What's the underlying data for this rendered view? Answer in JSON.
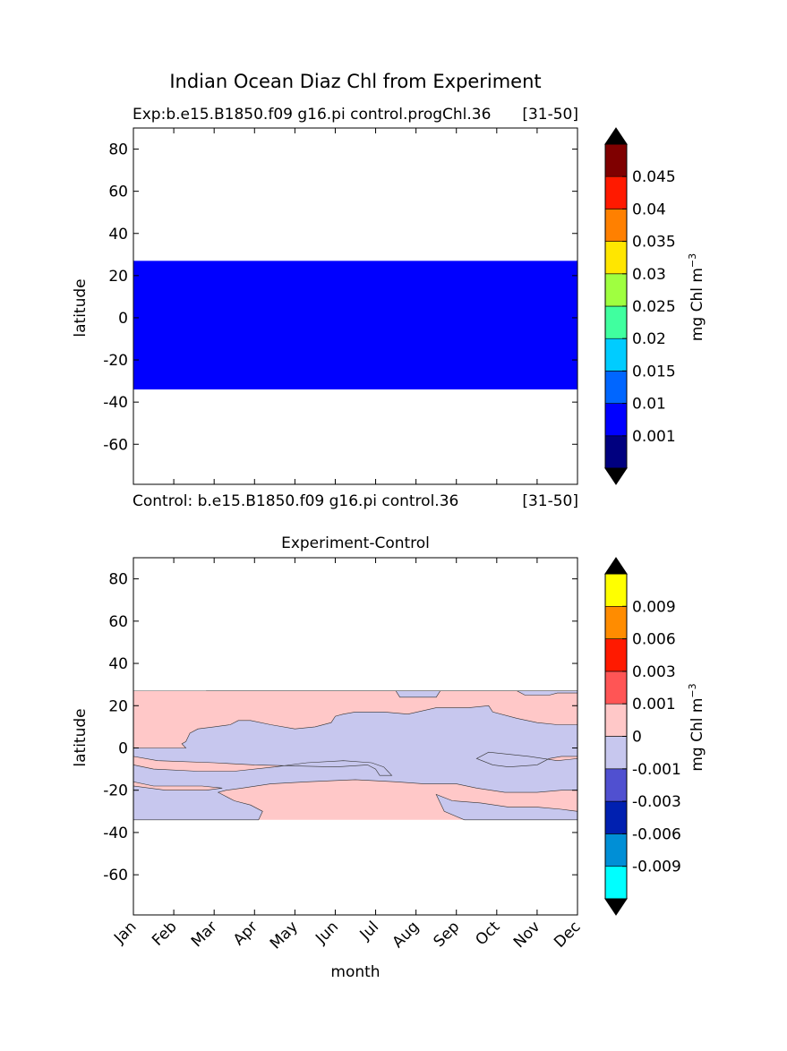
{
  "figure": {
    "title": "Indian Ocean Diaz Chl from Experiment"
  },
  "chart_data": [
    {
      "type": "heatmap",
      "panel": "top",
      "title_left": "Exp:b.e15.B1850.f09 g16.pi control.progChl.36",
      "title_right": "[31-50]",
      "below_left": "Control: b.e15.B1850.f09 g16.pi control.36",
      "below_right": "[31-50]",
      "ylabel": "latitude",
      "xlim": [
        0,
        11
      ],
      "ylim": [
        -79,
        90
      ],
      "yticks": [
        80,
        60,
        40,
        20,
        0,
        -20,
        -40,
        -60
      ],
      "data_extent_lat": [
        -34,
        27
      ],
      "regions": [
        {
          "lat_range": [
            -34,
            27
          ],
          "level": "0.001-0.01",
          "color": "#0000ff"
        }
      ],
      "colorbar": {
        "label": "mg Chl m",
        "label_sup": "−3",
        "extend": "both",
        "extend_low_color": "#000000",
        "extend_high_color": "#000000",
        "colors": [
          "#00007f",
          "#0000ff",
          "#0066ff",
          "#00ccff",
          "#40ff9f",
          "#9fff40",
          "#ffe600",
          "#ff8000",
          "#ff1a00",
          "#7f0000"
        ],
        "ticks": [
          "0.001",
          "0.01",
          "0.015",
          "0.02",
          "0.025",
          "0.03",
          "0.035",
          "0.04",
          "0.045"
        ]
      }
    },
    {
      "type": "heatmap",
      "panel": "bottom",
      "title": "Experiment-Control",
      "xlabel": "month",
      "ylabel": "latitude",
      "xticks": [
        "Jan",
        "Feb",
        "Mar",
        "Apr",
        "May",
        "Jun",
        "Jul",
        "Aug",
        "Sep",
        "Oct",
        "Nov",
        "Dec"
      ],
      "xlim": [
        0,
        11
      ],
      "ylim": [
        -79,
        90
      ],
      "yticks": [
        80,
        60,
        40,
        20,
        0,
        -20,
        -40,
        -60
      ],
      "data_extent_lat": [
        -34,
        27
      ],
      "background_level": {
        "range": "0-0.001",
        "color": "#ffc8c8"
      },
      "negative_regions": [
        {
          "level": "-0.001-0",
          "color": "#c7c7ee",
          "points": [
            [
              1.8,
              27
            ],
            [
              3.4,
              27
            ],
            [
              4.5,
              27
            ],
            [
              5.5,
              27
            ],
            [
              6.5,
              27
            ],
            [
              6.6,
              24
            ],
            [
              7.0,
              24
            ],
            [
              7.5,
              24
            ],
            [
              7.6,
              27
            ],
            [
              9.5,
              27
            ],
            [
              9.7,
              25
            ],
            [
              10.3,
              25
            ],
            [
              10.5,
              26
            ],
            [
              11,
              26
            ],
            [
              11,
              11
            ],
            [
              10.5,
              11
            ],
            [
              10.0,
              12
            ],
            [
              9.5,
              14
            ],
            [
              8.9,
              17
            ],
            [
              8.8,
              20
            ],
            [
              8.3,
              19
            ],
            [
              7.5,
              19
            ],
            [
              6.8,
              16
            ],
            [
              6.2,
              17
            ],
            [
              5.5,
              17
            ],
            [
              5.2,
              16
            ],
            [
              5.0,
              15
            ],
            [
              4.9,
              12
            ],
            [
              4.5,
              10
            ],
            [
              4.0,
              9
            ],
            [
              3.4,
              11
            ],
            [
              2.9,
              13
            ],
            [
              2.6,
              13
            ],
            [
              2.4,
              11
            ],
            [
              2.0,
              10
            ],
            [
              1.6,
              9
            ],
            [
              1.4,
              7
            ],
            [
              1.3,
              3
            ],
            [
              1.2,
              2
            ],
            [
              1.3,
              0
            ],
            [
              0,
              0
            ],
            [
              0,
              -4
            ],
            [
              0.6,
              -6
            ],
            [
              2.0,
              -7
            ],
            [
              3.0,
              -8
            ],
            [
              4.0,
              -8.5
            ],
            [
              5.0,
              -9
            ],
            [
              5.8,
              -8
            ],
            [
              6.0,
              -10
            ],
            [
              6.1,
              -13
            ],
            [
              6.4,
              -13
            ],
            [
              6.3,
              -11
            ],
            [
              6.2,
              -9
            ],
            [
              5.9,
              -7
            ],
            [
              5.2,
              -6
            ],
            [
              4.3,
              -7
            ],
            [
              3.5,
              -9
            ],
            [
              2.5,
              -11
            ],
            [
              1.6,
              -11
            ],
            [
              0.5,
              -10
            ],
            [
              0,
              -8
            ],
            [
              0,
              -16
            ],
            [
              0.5,
              -18
            ],
            [
              1.7,
              -18
            ],
            [
              2.2,
              -19
            ],
            [
              1.8,
              -20
            ],
            [
              0.8,
              -20
            ],
            [
              0,
              -18
            ],
            [
              0,
              -34
            ],
            [
              3.1,
              -34
            ],
            [
              3.2,
              -30
            ],
            [
              2.9,
              -27
            ],
            [
              2.5,
              -25
            ],
            [
              2.1,
              -21
            ],
            [
              2.3,
              -20
            ],
            [
              2.7,
              -19
            ],
            [
              3.4,
              -17
            ],
            [
              4.3,
              -16
            ],
            [
              5.5,
              -15
            ],
            [
              6.5,
              -16
            ],
            [
              7.2,
              -17
            ],
            [
              8.0,
              -17
            ],
            [
              8.5,
              -19
            ],
            [
              9.2,
              -21
            ],
            [
              10.0,
              -21
            ],
            [
              10.6,
              -20
            ],
            [
              11,
              -20
            ],
            [
              11,
              -5
            ],
            [
              10.5,
              -6
            ],
            [
              9.8,
              -4
            ],
            [
              9.3,
              -3
            ],
            [
              8.8,
              -2
            ],
            [
              8.5,
              -5
            ],
            [
              8.9,
              -8
            ],
            [
              9.3,
              -9
            ],
            [
              10.0,
              -8
            ],
            [
              10.3,
              -5
            ],
            [
              10.6,
              -4
            ],
            [
              11,
              -4
            ],
            [
              11,
              27
            ]
          ]
        },
        {
          "level": "-0.001-0",
          "color": "#c7c7ee",
          "points": [
            [
              7.5,
              -22
            ],
            [
              7.9,
              -25
            ],
            [
              8.6,
              -26
            ],
            [
              9.3,
              -28
            ],
            [
              10.0,
              -28
            ],
            [
              10.6,
              -29
            ],
            [
              11,
              -30
            ],
            [
              11,
              -34
            ],
            [
              10.0,
              -34
            ],
            [
              9.0,
              -34
            ],
            [
              8.2,
              -34
            ],
            [
              7.7,
              -30
            ],
            [
              7.6,
              -26
            ],
            [
              7.5,
              -22
            ]
          ]
        }
      ],
      "colorbar": {
        "label": "mg Chl m",
        "label_sup": "−3",
        "extend": "both",
        "extend_low_color": "#000000",
        "extend_high_color": "#000000",
        "colors": [
          "#00ffff",
          "#008fd6",
          "#0020b0",
          "#5050d0",
          "#c7c7ee",
          "#ffc8c8",
          "#ff5555",
          "#ff1a00",
          "#ff8c00",
          "#ffff00"
        ],
        "ticks": [
          "-0.009",
          "-0.006",
          "-0.003",
          "-0.001",
          "0",
          "0.001",
          "0.003",
          "0.006",
          "0.009"
        ]
      }
    }
  ]
}
